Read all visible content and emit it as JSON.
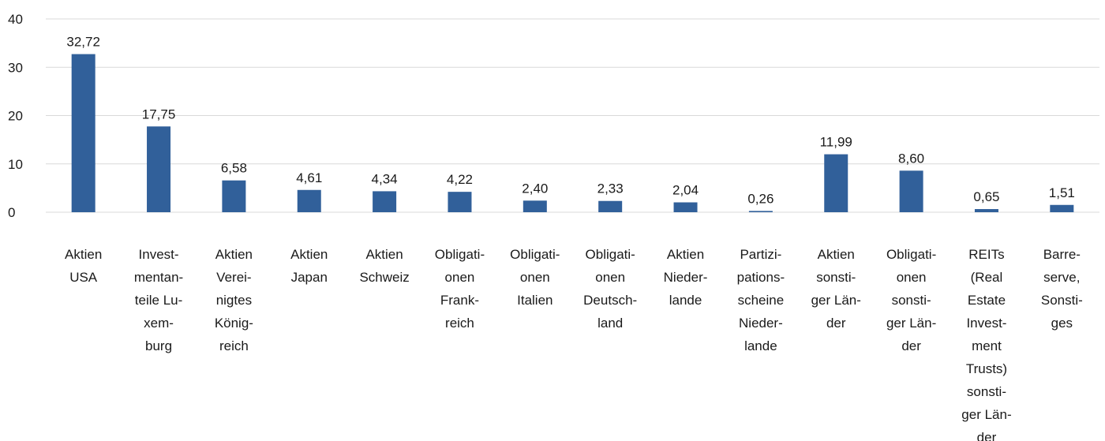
{
  "chart_data": {
    "type": "bar",
    "categories": [
      "Aktien USA",
      "Investmentanteile Luxemburg",
      "Aktien Vereinigtes Königreich",
      "Aktien Japan",
      "Aktien Schweiz",
      "Obligationen Frankreich",
      "Obligationen Italien",
      "Obligationen Deutschland",
      "Aktien Niederlande",
      "Partizipationsscheine Niederlande",
      "Aktien sonstiger Länder",
      "Obligationen sonstiger Länder",
      "REITs (Real Estate Investment Trusts) sonstiger Länder",
      "Barreserve, Sonstiges"
    ],
    "category_lines": [
      [
        "Aktien",
        "USA"
      ],
      [
        "Invest-",
        "mentan-",
        "teile Lu-",
        "xem-",
        "burg"
      ],
      [
        "Aktien",
        "Verei-",
        "nigtes",
        "König-",
        "reich"
      ],
      [
        "Aktien",
        "Japan"
      ],
      [
        "Aktien",
        "Schweiz"
      ],
      [
        "Obligati-",
        "onen",
        "Frank-",
        "reich"
      ],
      [
        "Obligati-",
        "onen",
        "Italien"
      ],
      [
        "Obligati-",
        "onen",
        "Deutsch-",
        "land"
      ],
      [
        "Aktien",
        "Nieder-",
        "lande"
      ],
      [
        "Partizi-",
        "pations-",
        "scheine",
        "Nieder-",
        "lande"
      ],
      [
        "Aktien",
        "sonsti-",
        "ger Län-",
        "der"
      ],
      [
        "Obligati-",
        "onen",
        "sonsti-",
        "ger Län-",
        "der"
      ],
      [
        "REITs",
        "(Real",
        "Estate",
        "Invest-",
        "ment",
        "Trusts)",
        "sonsti-",
        "ger Län-",
        "der"
      ],
      [
        "Barre-",
        "serve,",
        "Sonsti-",
        "ges"
      ]
    ],
    "values": [
      32.72,
      17.75,
      6.58,
      4.61,
      4.34,
      4.22,
      2.4,
      2.33,
      2.04,
      0.26,
      11.99,
      8.6,
      0.65,
      1.51
    ],
    "value_labels": [
      "32,72",
      "17,75",
      "6,58",
      "4,61",
      "4,34",
      "4,22",
      "2,40",
      "2,33",
      "2,04",
      "0,26",
      "11,99",
      "8,60",
      "0,65",
      "1,51"
    ],
    "y_ticks": [
      "0",
      "10",
      "20",
      "30",
      "40"
    ],
    "ylim": [
      0,
      40
    ],
    "grid": true,
    "bar_color": "#31609a",
    "grid_color": "#d9d9d9",
    "text_color": "#1a1a1a",
    "title": "",
    "xlabel": "",
    "ylabel": ""
  }
}
